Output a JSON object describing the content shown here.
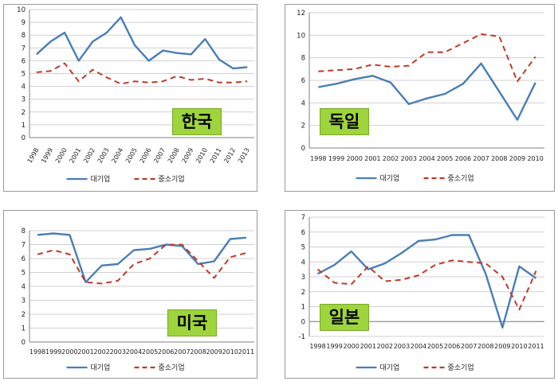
{
  "colors": {
    "large": "#4a7eb5",
    "sme": "#c0392b",
    "badge": "#9ed43c"
  },
  "chart_data": [
    {
      "type": "line",
      "country": "한국",
      "x": [
        "1998",
        "1999",
        "2000",
        "2001",
        "2002",
        "2003",
        "2004",
        "2005",
        "2006",
        "2007",
        "2008",
        "2009",
        "2010",
        "2011",
        "2012",
        "2013"
      ],
      "ylim": [
        0,
        10
      ],
      "yticks": [
        0,
        1,
        2,
        3,
        4,
        5,
        6,
        7,
        8,
        9,
        10
      ],
      "x_rotated": true,
      "grid": true,
      "legend": "bottom",
      "series": [
        {
          "name": "대기업",
          "style": "solid",
          "values": [
            6.5,
            7.5,
            8.2,
            6.0,
            7.5,
            8.2,
            9.4,
            7.2,
            6.0,
            6.8,
            6.6,
            6.5,
            7.7,
            6.1,
            5.4,
            5.5
          ]
        },
        {
          "name": "중소기업",
          "style": "dashed",
          "values": [
            5.1,
            5.2,
            5.8,
            4.4,
            5.3,
            4.7,
            4.2,
            4.4,
            4.3,
            4.4,
            4.8,
            4.5,
            4.6,
            4.3,
            4.3,
            4.4
          ]
        }
      ]
    },
    {
      "type": "line",
      "country": "독일",
      "x": [
        "1998",
        "1999",
        "2000",
        "2001",
        "2002",
        "2003",
        "2004",
        "2005",
        "2006",
        "2007",
        "2008",
        "2009",
        "2010"
      ],
      "ylim": [
        0,
        12
      ],
      "yticks": [
        0,
        2,
        4,
        6,
        8,
        10,
        12
      ],
      "x_rotated": false,
      "grid": true,
      "legend": "bottom",
      "series": [
        {
          "name": "대기업",
          "style": "solid",
          "values": [
            5.4,
            5.7,
            6.1,
            6.4,
            5.8,
            3.9,
            4.4,
            4.8,
            5.7,
            7.5,
            5.0,
            2.5,
            5.8
          ]
        },
        {
          "name": "중소기업",
          "style": "dashed",
          "values": [
            6.8,
            6.9,
            7.0,
            7.4,
            7.2,
            7.3,
            8.5,
            8.5,
            9.3,
            10.1,
            9.9,
            5.9,
            8.1
          ]
        }
      ]
    },
    {
      "type": "line",
      "country": "미국",
      "x": [
        "1998",
        "1999",
        "2000",
        "2001",
        "2002",
        "2003",
        "2004",
        "2005",
        "2006",
        "2007",
        "2008",
        "2009",
        "2010",
        "2011"
      ],
      "ylim": [
        0,
        8
      ],
      "yticks": [
        0,
        1,
        2,
        3,
        4,
        5,
        6,
        7,
        8
      ],
      "x_rotated": false,
      "grid": true,
      "legend": "bottom",
      "series": [
        {
          "name": "대기업",
          "style": "solid",
          "values": [
            7.7,
            7.8,
            7.7,
            4.3,
            5.5,
            5.6,
            6.6,
            6.7,
            7.0,
            6.9,
            5.6,
            5.8,
            7.4,
            7.5
          ]
        },
        {
          "name": "중소기업",
          "style": "dashed",
          "values": [
            6.3,
            6.6,
            6.3,
            4.3,
            4.2,
            4.4,
            5.6,
            6.0,
            7.0,
            7.0,
            5.8,
            4.6,
            6.1,
            6.4
          ]
        }
      ]
    },
    {
      "type": "line",
      "country": "일본",
      "x": [
        "1998",
        "1999",
        "2000",
        "2001",
        "2002",
        "2003",
        "2004",
        "2005",
        "2006",
        "2007",
        "2008",
        "2009",
        "2010",
        "2011"
      ],
      "ylim": [
        -1,
        7
      ],
      "yticks": [
        -1,
        0,
        1,
        2,
        3,
        4,
        5,
        6,
        7
      ],
      "x_rotated": false,
      "grid": true,
      "legend": "bottom",
      "series": [
        {
          "name": "대기업",
          "style": "solid",
          "values": [
            3.2,
            3.8,
            4.7,
            3.5,
            3.9,
            4.6,
            5.4,
            5.5,
            5.8,
            5.8,
            3.2,
            -0.4,
            3.7,
            2.9
          ]
        },
        {
          "name": "중소기업",
          "style": "dashed",
          "values": [
            3.5,
            2.6,
            2.5,
            3.7,
            2.7,
            2.8,
            3.1,
            3.8,
            4.1,
            4.0,
            3.9,
            3.0,
            0.8,
            3.4
          ]
        }
      ]
    }
  ]
}
